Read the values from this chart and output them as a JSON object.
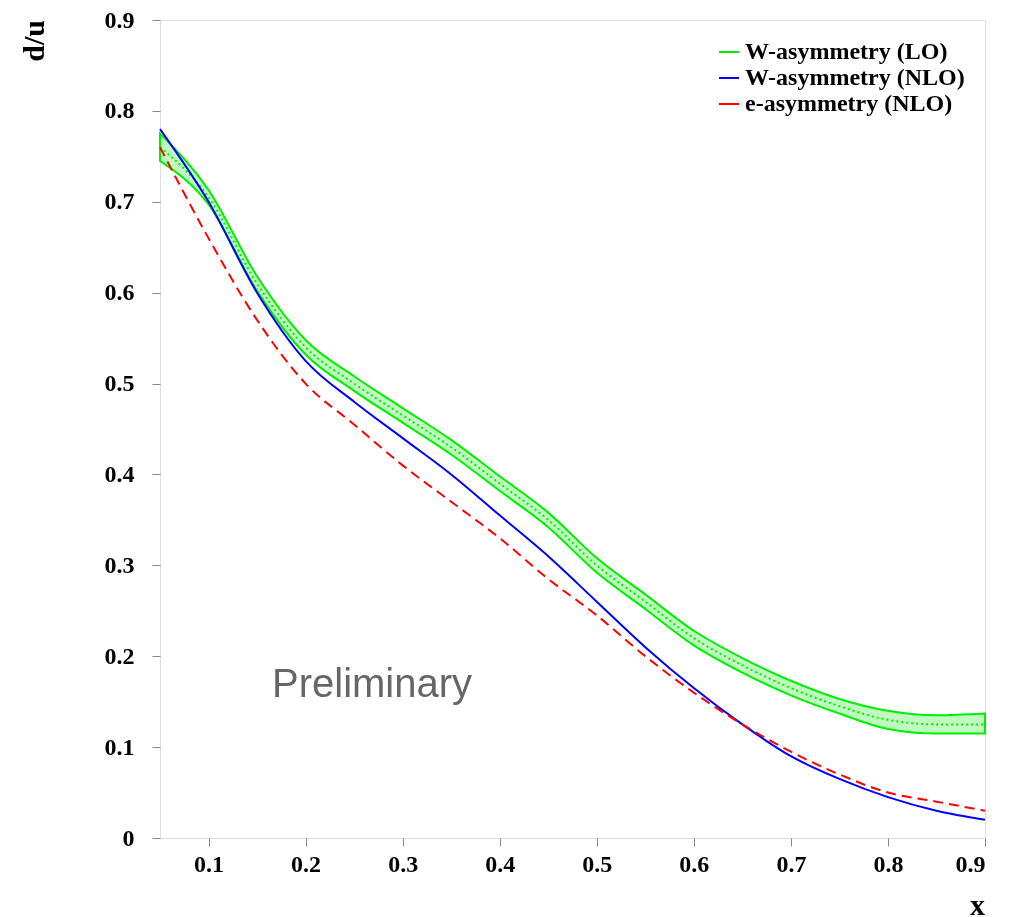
{
  "chart_data": {
    "type": "line",
    "xlabel": "x",
    "ylabel": "d/u",
    "x": [
      0.05,
      0.1,
      0.15,
      0.2,
      0.25,
      0.3,
      0.35,
      0.4,
      0.45,
      0.5,
      0.55,
      0.6,
      0.65,
      0.7,
      0.75,
      0.8,
      0.85,
      0.9
    ],
    "series": [
      {
        "name": "W-asymmetry (LO)",
        "color": "#00ee00",
        "line_style": "dotted",
        "values": [
          0.76,
          0.705,
          0.61,
          0.54,
          0.5,
          0.465,
          0.43,
          0.39,
          0.35,
          0.3,
          0.26,
          0.22,
          0.19,
          0.165,
          0.145,
          0.13,
          0.125,
          0.125
        ],
        "lower": [
          0.745,
          0.697,
          0.602,
          0.532,
          0.492,
          0.457,
          0.422,
          0.382,
          0.342,
          0.292,
          0.252,
          0.212,
          0.182,
          0.157,
          0.137,
          0.12,
          0.115,
          0.115
        ],
        "upper": [
          0.775,
          0.713,
          0.618,
          0.548,
          0.508,
          0.473,
          0.438,
          0.398,
          0.358,
          0.308,
          0.268,
          0.228,
          0.198,
          0.173,
          0.153,
          0.14,
          0.135,
          0.137
        ]
      },
      {
        "name": "W-asymmetry (NLO)",
        "color": "#0000ff",
        "line_style": "solid",
        "values": [
          0.78,
          0.7,
          0.6,
          0.525,
          0.48,
          0.44,
          0.4,
          0.355,
          0.31,
          0.26,
          0.21,
          0.165,
          0.125,
          0.09,
          0.065,
          0.045,
          0.03,
          0.02
        ]
      },
      {
        "name": "e-asymmetry (NLO)",
        "color": "#ff0000",
        "line_style": "dashed",
        "values": [
          0.76,
          0.66,
          0.57,
          0.5,
          0.455,
          0.41,
          0.37,
          0.33,
          0.285,
          0.245,
          0.2,
          0.16,
          0.125,
          0.095,
          0.07,
          0.05,
          0.04,
          0.03
        ]
      }
    ],
    "xlim": [
      0.05,
      0.9
    ],
    "ylim": [
      0,
      0.9
    ],
    "xticks": [
      0.1,
      0.2,
      0.3,
      0.4,
      0.5,
      0.6,
      0.7,
      0.8,
      0.9
    ],
    "yticks": [
      0,
      0.1,
      0.2,
      0.3,
      0.4,
      0.5,
      0.6,
      0.7,
      0.8,
      0.9
    ],
    "legend": "top right",
    "grid": false,
    "annotations": [
      "Preliminary"
    ]
  }
}
